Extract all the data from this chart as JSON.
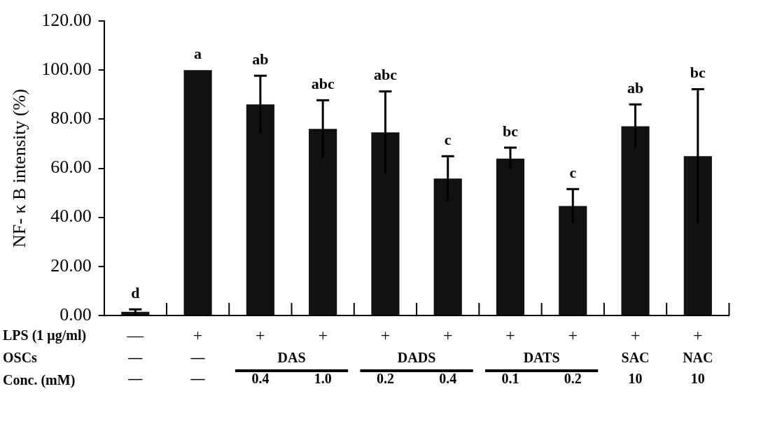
{
  "chart_data": {
    "type": "bar",
    "ylabel": "NF- κ B intensity (%)",
    "categories": [
      "—",
      "—",
      "0.4",
      "1.0",
      "0.2",
      "0.4",
      "0.1",
      "0.2",
      "10",
      "10"
    ],
    "values": [
      1.5,
      100,
      86.0,
      76.0,
      74.6,
      55.8,
      63.9,
      44.6,
      77.1,
      64.9
    ],
    "errors": [
      1.0,
      null,
      11.7,
      11.7,
      16.7,
      9.1,
      4.5,
      6.9,
      8.9,
      27.3
    ],
    "color": "#111111",
    "ylim": [
      0,
      120
    ],
    "yticks": [
      {
        "value": 0,
        "label": "0.00"
      },
      {
        "value": 20,
        "label": "20.00"
      },
      {
        "value": 40,
        "label": "40.00"
      },
      {
        "value": 60,
        "label": "60.00"
      },
      {
        "value": 80,
        "label": "80.00"
      },
      {
        "value": 100,
        "label": "100.00"
      },
      {
        "value": 120,
        "label": "120.00"
      }
    ],
    "grid": false,
    "legend": false,
    "annotations": [
      "LPS (1 μg/ml)",
      "OSCs",
      "Conc. (mM)",
      "—",
      "+",
      "+",
      "+",
      "+",
      "+",
      "+",
      "+",
      "+",
      "+",
      "—",
      "—",
      "DAS",
      "DADS",
      "DATS",
      "SAC",
      "NAC",
      "d",
      "a",
      "ab",
      "abc",
      "abc",
      "c",
      "bc",
      "c",
      "ab",
      "bc"
    ]
  }
}
